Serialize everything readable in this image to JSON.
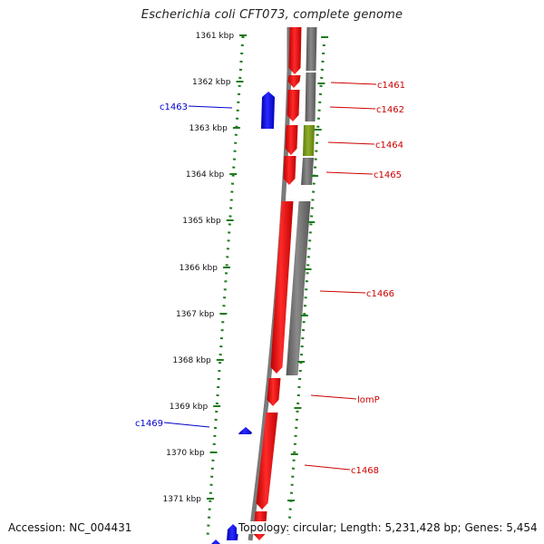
{
  "title": "Escherichia coli CFT073, complete genome",
  "footer": {
    "accession": "Accession: NC_004431",
    "topology": "Topology: circular; Length: 5,231,428 bp; Genes: 5,454"
  },
  "ruler_ticks": [
    "1361 kbp",
    "1362 kbp",
    "1363 kbp",
    "1364 kbp",
    "1365 kbp",
    "1366 kbp",
    "1367 kbp",
    "1368 kbp",
    "1369 kbp",
    "1370 kbp",
    "1371 kbp"
  ],
  "gene_labels": [
    {
      "name": "c1461",
      "strand": "forward"
    },
    {
      "name": "c1462",
      "strand": "forward"
    },
    {
      "name": "c1463",
      "strand": "reverse"
    },
    {
      "name": "c1464",
      "strand": "forward"
    },
    {
      "name": "c1465",
      "strand": "forward"
    },
    {
      "name": "c1466",
      "strand": "forward"
    },
    {
      "name": "lomP",
      "strand": "forward"
    },
    {
      "name": "c1469",
      "strand": "reverse"
    },
    {
      "name": "c1468",
      "strand": "forward"
    }
  ],
  "colors": {
    "cds_forward": "#ff0000",
    "cds_reverse": "#0000ff",
    "feature_gray": "#666666",
    "feature_green": "#7a9a1a",
    "ruler_green": "#1e7a1e",
    "label_forward": "#cc0000",
    "label_reverse": "#0000cc"
  }
}
